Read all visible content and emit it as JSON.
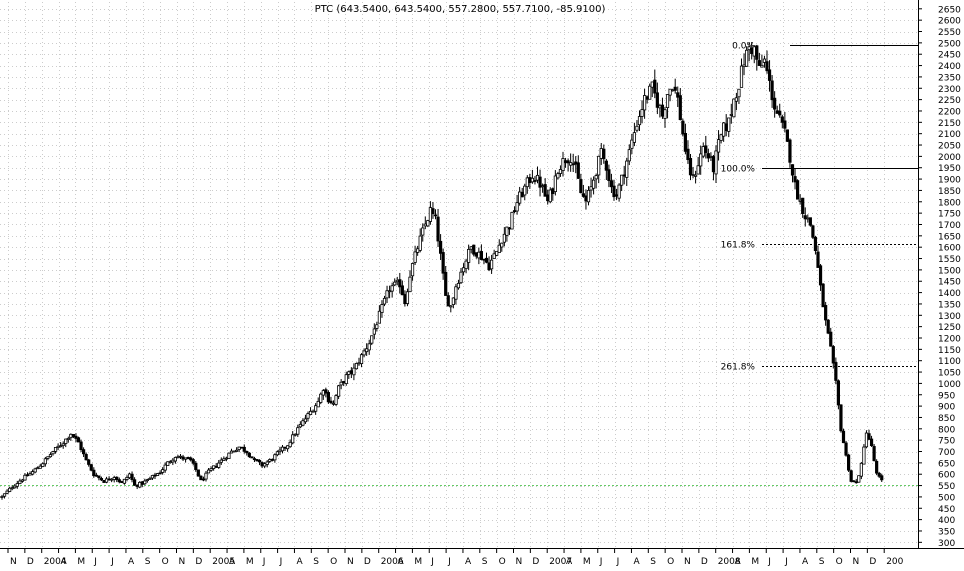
{
  "chart_data": {
    "type": "candlestick",
    "title": "PTC (643.5400, 643.5400, 557.2800, 557.7100, -85.9100)",
    "x_tick_labels": [
      "N",
      "D",
      "2004",
      "A",
      "M",
      "J",
      "J",
      "A",
      "S",
      "O",
      "N",
      "D",
      "2005",
      "A",
      "M",
      "J",
      "J",
      "A",
      "S",
      "O",
      "N",
      "D",
      "2006",
      "A",
      "M",
      "J",
      "J",
      "A",
      "S",
      "O",
      "N",
      "D",
      "2007",
      "A",
      "M",
      "J",
      "J",
      "A",
      "S",
      "O",
      "N",
      "D",
      "2008",
      "A",
      "M",
      "J",
      "J",
      "A",
      "S",
      "O",
      "N",
      "D",
      "200"
    ],
    "y_ticks": [
      300,
      350,
      400,
      450,
      500,
      550,
      600,
      650,
      700,
      750,
      800,
      850,
      900,
      950,
      1000,
      1050,
      1100,
      1150,
      1200,
      1250,
      1300,
      1350,
      1400,
      1450,
      1500,
      1550,
      1600,
      1650,
      1700,
      1750,
      1800,
      1850,
      1900,
      1950,
      2000,
      2050,
      2100,
      2150,
      2200,
      2250,
      2300,
      2350,
      2400,
      2450,
      2500,
      2550,
      2600,
      2650
    ],
    "ylim": [
      275,
      2680
    ],
    "grid": true,
    "price_path": [
      [
        0,
        500
      ],
      [
        4,
        545
      ],
      [
        8,
        580
      ],
      [
        12,
        610
      ],
      [
        16,
        650
      ],
      [
        20,
        700
      ],
      [
        24,
        740
      ],
      [
        27,
        780
      ],
      [
        30,
        740
      ],
      [
        33,
        660
      ],
      [
        36,
        600
      ],
      [
        40,
        570
      ],
      [
        44,
        590
      ],
      [
        47,
        560
      ],
      [
        50,
        600
      ],
      [
        52,
        550
      ],
      [
        55,
        560
      ],
      [
        58,
        580
      ],
      [
        62,
        610
      ],
      [
        65,
        650
      ],
      [
        68,
        680
      ],
      [
        71,
        670
      ],
      [
        74,
        660
      ],
      [
        76,
        620
      ],
      [
        78,
        570
      ],
      [
        81,
        610
      ],
      [
        84,
        640
      ],
      [
        87,
        670
      ],
      [
        90,
        700
      ],
      [
        93,
        720
      ],
      [
        96,
        700
      ],
      [
        99,
        660
      ],
      [
        102,
        640
      ],
      [
        105,
        660
      ],
      [
        108,
        690
      ],
      [
        112,
        730
      ],
      [
        116,
        800
      ],
      [
        120,
        860
      ],
      [
        124,
        920
      ],
      [
        126,
        980
      ],
      [
        128,
        930
      ],
      [
        130,
        910
      ],
      [
        132,
        980
      ],
      [
        135,
        1030
      ],
      [
        138,
        1060
      ],
      [
        141,
        1120
      ],
      [
        144,
        1180
      ],
      [
        148,
        1300
      ],
      [
        152,
        1420
      ],
      [
        156,
        1440
      ],
      [
        158,
        1360
      ],
      [
        160,
        1480
      ],
      [
        163,
        1600
      ],
      [
        166,
        1700
      ],
      [
        168,
        1760
      ],
      [
        170,
        1720
      ],
      [
        172,
        1560
      ],
      [
        174,
        1380
      ],
      [
        176,
        1340
      ],
      [
        178,
        1430
      ],
      [
        181,
        1520
      ],
      [
        184,
        1600
      ],
      [
        186,
        1580
      ],
      [
        188,
        1560
      ],
      [
        191,
        1520
      ],
      [
        194,
        1580
      ],
      [
        196,
        1640
      ],
      [
        199,
        1700
      ],
      [
        202,
        1800
      ],
      [
        205,
        1860
      ],
      [
        208,
        1920
      ],
      [
        211,
        1880
      ],
      [
        214,
        1800
      ],
      [
        216,
        1860
      ],
      [
        218,
        1950
      ],
      [
        221,
        1990
      ],
      [
        223,
        2000
      ],
      [
        225,
        1940
      ],
      [
        227,
        1840
      ],
      [
        229,
        1800
      ],
      [
        231,
        1860
      ],
      [
        233,
        1940
      ],
      [
        235,
        2010
      ],
      [
        237,
        1960
      ],
      [
        239,
        1860
      ],
      [
        241,
        1830
      ],
      [
        243,
        1900
      ],
      [
        246,
        2020
      ],
      [
        249,
        2150
      ],
      [
        252,
        2250
      ],
      [
        255,
        2300
      ],
      [
        257,
        2240
      ],
      [
        259,
        2180
      ],
      [
        261,
        2280
      ],
      [
        263,
        2320
      ],
      [
        265,
        2250
      ],
      [
        267,
        2100
      ],
      [
        269,
        1960
      ],
      [
        271,
        1900
      ],
      [
        273,
        1970
      ],
      [
        275,
        2040
      ],
      [
        277,
        2000
      ],
      [
        279,
        1950
      ],
      [
        281,
        2050
      ],
      [
        283,
        2120
      ],
      [
        285,
        2150
      ],
      [
        287,
        2250
      ],
      [
        289,
        2320
      ],
      [
        291,
        2420
      ],
      [
        293,
        2480
      ],
      [
        295,
        2470
      ],
      [
        297,
        2380
      ],
      [
        299,
        2420
      ],
      [
        301,
        2320
      ],
      [
        303,
        2220
      ],
      [
        305,
        2160
      ],
      [
        307,
        2100
      ],
      [
        309,
        2000
      ],
      [
        311,
        1870
      ],
      [
        313,
        1800
      ],
      [
        315,
        1740
      ],
      [
        317,
        1700
      ],
      [
        319,
        1590
      ],
      [
        321,
        1420
      ],
      [
        323,
        1270
      ],
      [
        325,
        1150
      ],
      [
        327,
        1000
      ],
      [
        329,
        800
      ],
      [
        331,
        680
      ],
      [
        333,
        570
      ],
      [
        335,
        560
      ],
      [
        337,
        640
      ],
      [
        339,
        790
      ],
      [
        341,
        720
      ],
      [
        343,
        600
      ],
      [
        345,
        570
      ]
    ],
    "bar_count": 346,
    "fibonacci_levels": [
      {
        "label": "0.0%",
        "value": 2490,
        "style": "solid"
      },
      {
        "label": "100.0%",
        "value": 1950,
        "style": "solid"
      },
      {
        "label": "161.8%",
        "value": 1616,
        "style": "dashed"
      },
      {
        "label": "261.8%",
        "value": 1075,
        "style": "dashed"
      }
    ],
    "support_line": {
      "value": 553,
      "color": "#66cc66",
      "style": "dashed"
    }
  }
}
